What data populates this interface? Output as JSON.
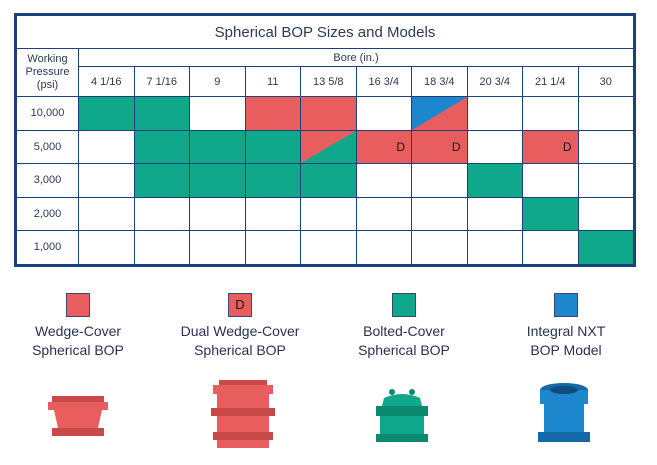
{
  "title": "Spherical BOP Sizes and Models",
  "pressure_header": "Working\nPressure\n(psi)",
  "bore_header": "Bore (in.)",
  "bores": [
    "4 1/16",
    "7 1/16",
    "9",
    "11",
    "13 5/8",
    "16 3/4",
    "18 3/4",
    "20 3/4",
    "21 1/4",
    "30"
  ],
  "pressures": [
    "10,000",
    "5,000",
    "3,000",
    "2,000",
    "1,000"
  ],
  "colors": {
    "wedge": "#e85e5e",
    "bolted": "#0fa88a",
    "integral": "#1d87cd",
    "border": "#1d3f7a"
  },
  "cells": [
    [
      "bolted",
      "bolted",
      "",
      "wedge",
      "wedge",
      "",
      "split-integral-wedge",
      "",
      "",
      ""
    ],
    [
      "",
      "bolted",
      "bolted",
      "bolted",
      "split-bolted-wedge",
      "dual",
      "dual",
      "",
      "dual",
      ""
    ],
    [
      "",
      "bolted",
      "bolted",
      "bolted",
      "bolted",
      "",
      "",
      "bolted",
      "",
      ""
    ],
    [
      "",
      "",
      "",
      "",
      "",
      "",
      "",
      "",
      "bolted",
      ""
    ],
    [
      "",
      "",
      "",
      "",
      "",
      "",
      "",
      "",
      "",
      "bolted"
    ]
  ],
  "dual_mark": "D",
  "legend": [
    {
      "key": "wedge",
      "label": "Wedge-Cover\nSpherical BOP",
      "icon": "wedge-cover-bop-icon"
    },
    {
      "key": "dual",
      "label": "Dual Wedge-Cover\nSpherical BOP",
      "icon": "dual-wedge-cover-bop-icon"
    },
    {
      "key": "bolted",
      "label": "Bolted-Cover\nSpherical BOP",
      "icon": "bolted-cover-bop-icon"
    },
    {
      "key": "integral",
      "label": "Integral NXT\nBOP Model",
      "icon": "integral-nxt-bop-icon"
    }
  ]
}
